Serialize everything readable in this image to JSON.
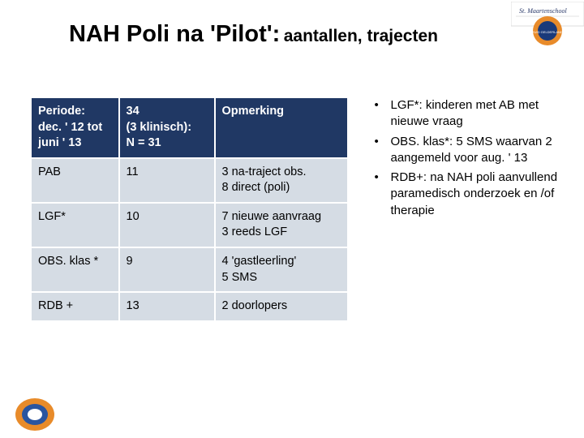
{
  "title": {
    "main": "NAH Poli na 'Pilot':",
    "sub": "aantallen, trajecten"
  },
  "table": {
    "header": {
      "c1": "Periode:\ndec. ' 12 tot\njuni ' 13",
      "c2": "34\n(3 klinisch):\nN = 31",
      "c3": "Opmerking"
    },
    "rows": [
      {
        "c1": "PAB",
        "c2": "11",
        "c3": "3 na-traject obs.\n8 direct (poli)"
      },
      {
        "c1": "LGF*",
        "c2": "10",
        "c3": "7 nieuwe aanvraag\n3 reeds LGF"
      },
      {
        "c1": "OBS. klas *",
        "c2": "9",
        "c3": "4 'gastleerling'\n5 SMS"
      },
      {
        "c1": "RDB +",
        "c2": "13",
        "c3": "2 doorlopers"
      }
    ],
    "header_bg": "#203864",
    "header_fg": "#ffffff",
    "cell_bg": "#d5dce4",
    "cell_fg": "#000000",
    "border_color": "#ffffff"
  },
  "bullets": [
    "LGF*: kinderen met AB met nieuwe vraag",
    "OBS. klas*: 5 SMS waarvan 2 aangemeld voor aug. ' 13",
    "RDB+: na NAH poli aanvullend paramedisch onderzoek en /of therapie"
  ],
  "logos": {
    "topright_label": "St. Maartenschool",
    "topright_ring_outer": "#e88b2a",
    "topright_ring_inner": "#1a3a7a",
    "bottomleft_ring_outer": "#e88b2a",
    "bottomleft_ring_inner": "#2a55a0"
  }
}
